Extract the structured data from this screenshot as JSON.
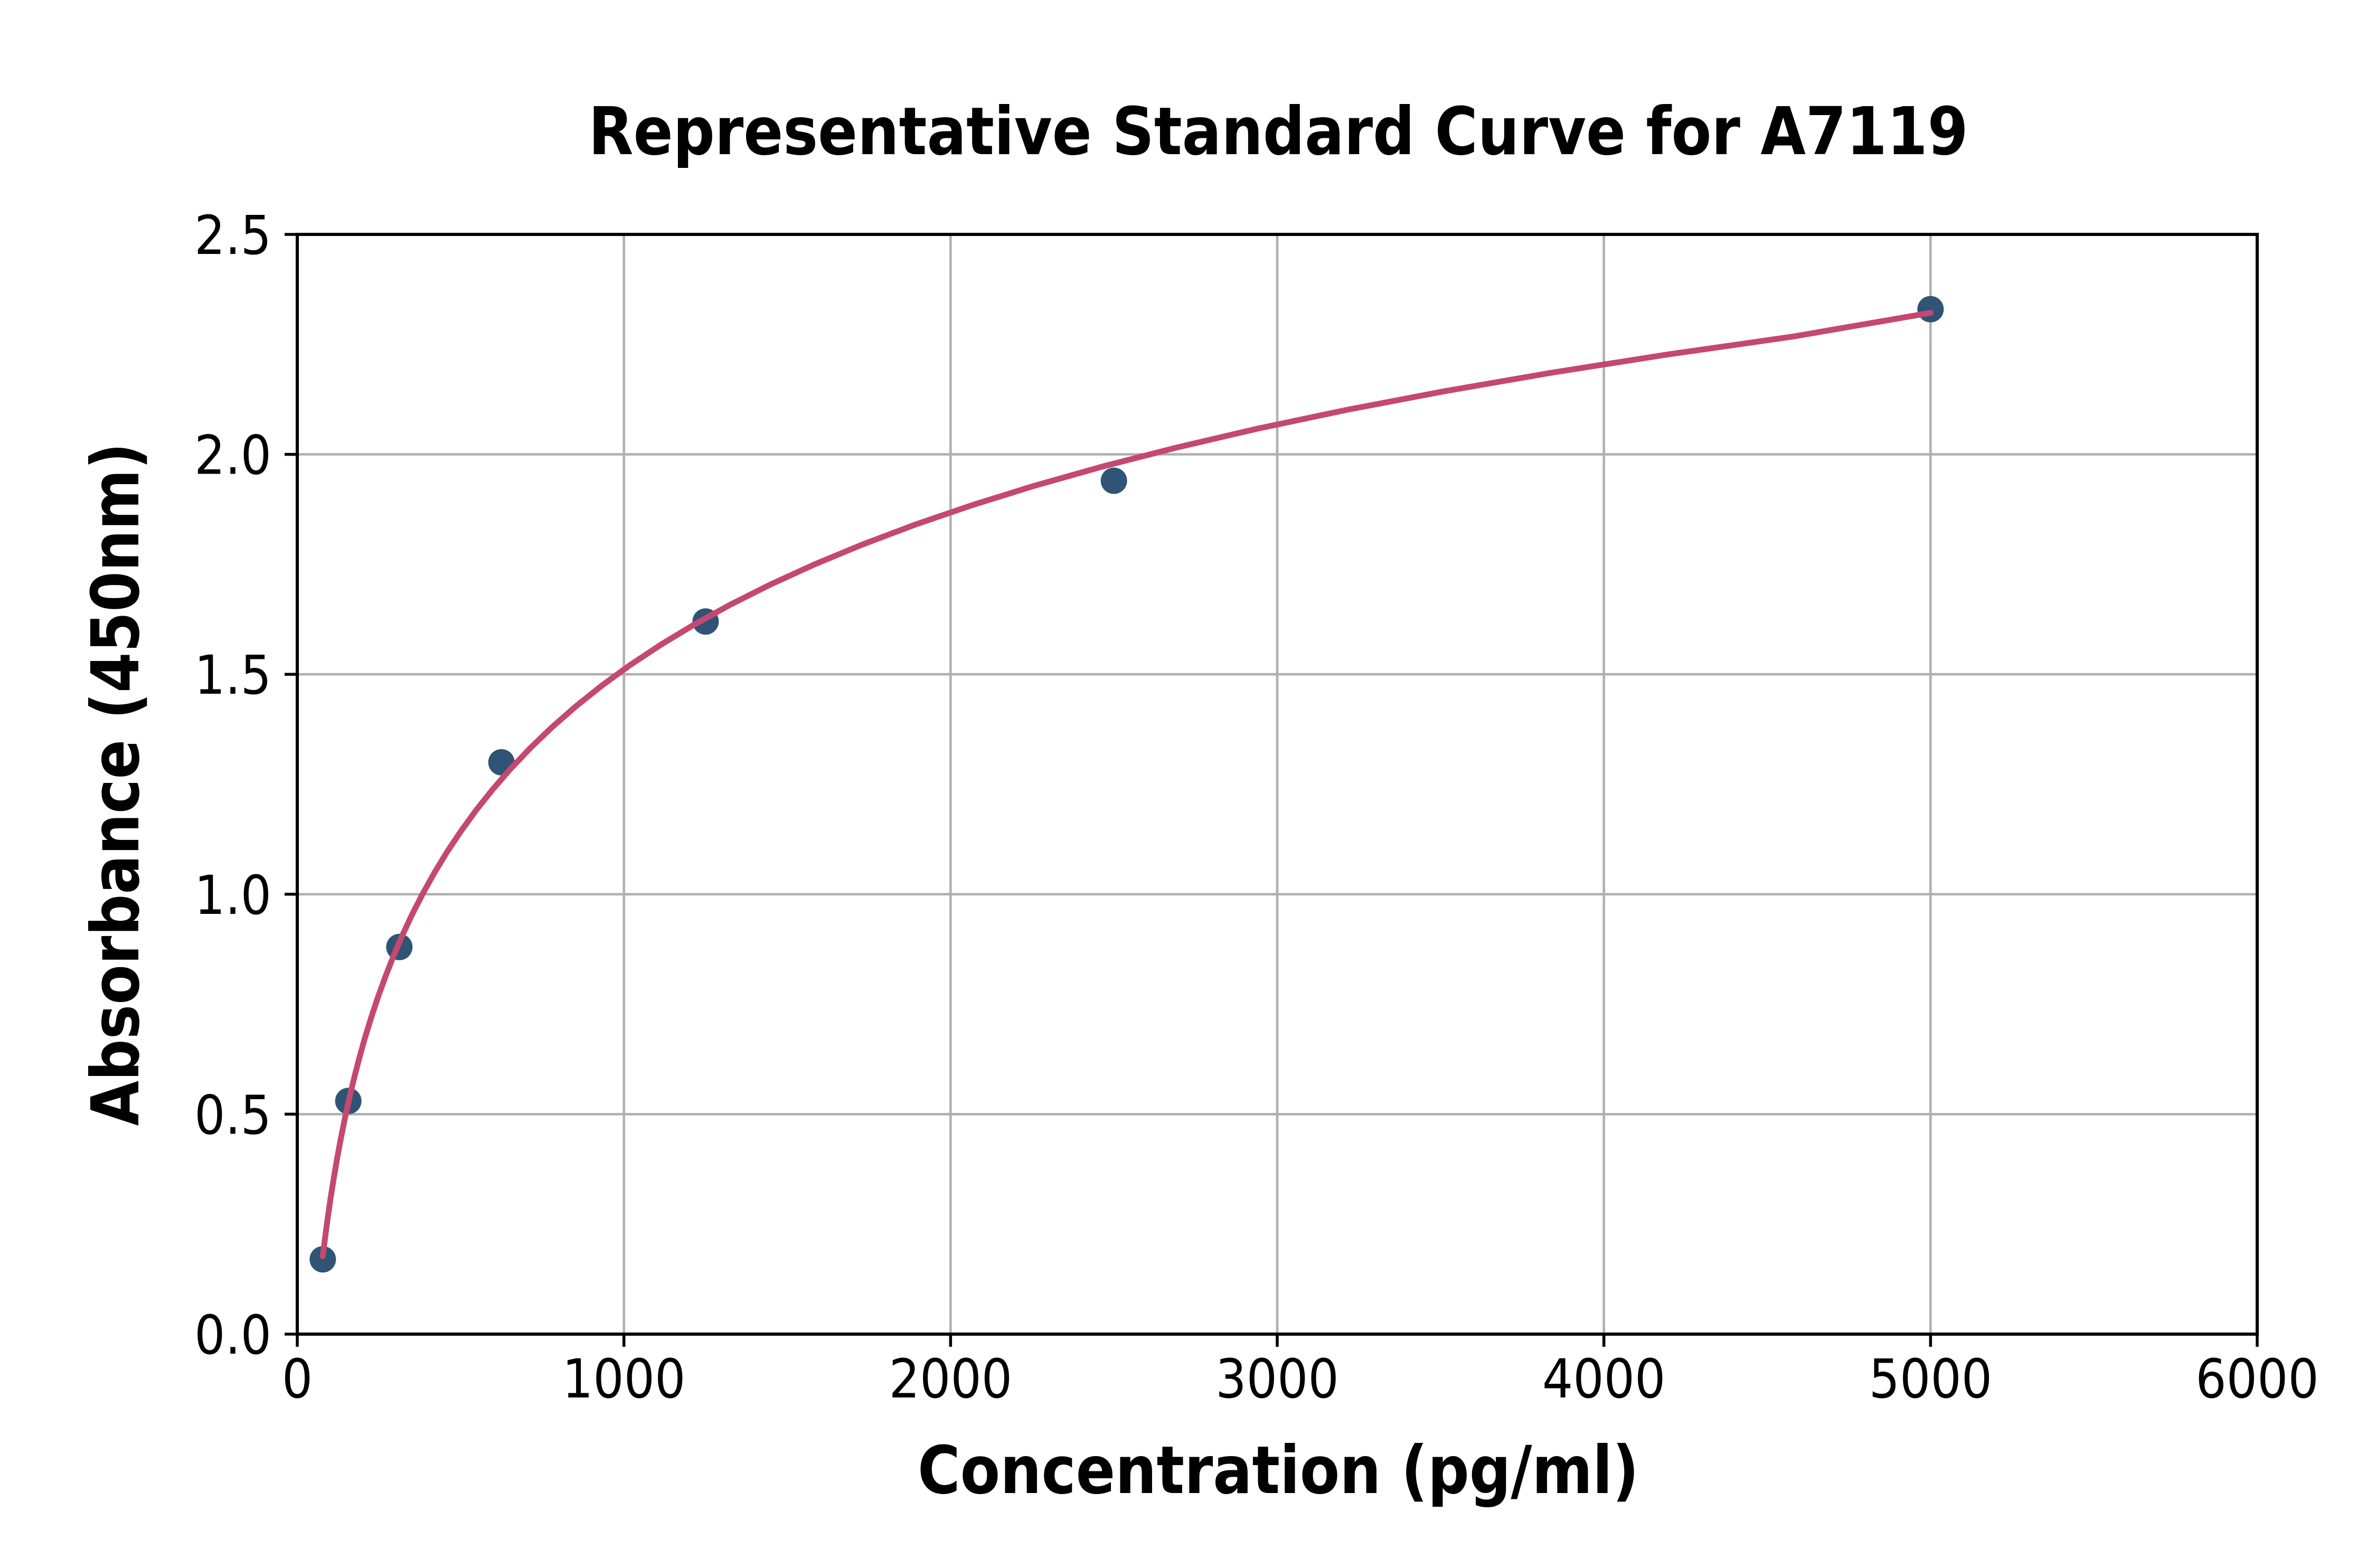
{
  "figure": {
    "background": "#ffffff"
  },
  "chart_data": {
    "type": "scatter",
    "title": "Representative Standard Curve for A7119",
    "xlabel": "Concentration (pg/ml)",
    "ylabel": "Absorbance (450nm)",
    "xlim": [
      0,
      6000
    ],
    "ylim": [
      0.0,
      2.5
    ],
    "xticks": [
      0,
      1000,
      2000,
      3000,
      4000,
      5000,
      6000
    ],
    "yticks": [
      0.0,
      0.5,
      1.0,
      1.5,
      2.0,
      2.5
    ],
    "xtick_labels": [
      "0",
      "1000",
      "2000",
      "3000",
      "4000",
      "5000",
      "6000"
    ],
    "ytick_labels": [
      "0.0",
      "0.5",
      "1.0",
      "1.5",
      "2.0",
      "2.5"
    ],
    "grid": true,
    "legend_position": "none",
    "series": [
      {
        "name": "standard-points",
        "type": "scatter",
        "marker": "circle",
        "x": [
          78.125,
          156.25,
          312.5,
          625,
          1250,
          2500,
          5000
        ],
        "y": [
          0.17,
          0.53,
          0.88,
          1.3,
          1.62,
          1.94,
          2.33
        ]
      },
      {
        "name": "4pl-fit-curve",
        "type": "line",
        "points": [
          [
            78.1,
            0.1769
          ],
          [
            85.4,
            0.2203
          ],
          [
            93.2,
            0.2641
          ],
          [
            101.9,
            0.3082
          ],
          [
            111.3,
            0.3527
          ],
          [
            121.6,
            0.3975
          ],
          [
            132.9,
            0.4427
          ],
          [
            145.1,
            0.4881
          ],
          [
            158.6,
            0.5338
          ],
          [
            173.2,
            0.5797
          ],
          [
            189.3,
            0.6259
          ],
          [
            206.8,
            0.6723
          ],
          [
            225.9,
            0.7189
          ],
          [
            246.8,
            0.7656
          ],
          [
            269.7,
            0.8125
          ],
          [
            294.6,
            0.8596
          ],
          [
            321.9,
            0.9068
          ],
          [
            351.6,
            0.954
          ],
          [
            384.2,
            1.0013
          ],
          [
            419.7,
            1.0487
          ],
          [
            458.5,
            1.0961
          ],
          [
            501.0,
            1.1434
          ],
          [
            547.3,
            1.1908
          ],
          [
            598.0,
            1.2381
          ],
          [
            653.3,
            1.2854
          ],
          [
            713.7,
            1.3325
          ],
          [
            779.7,
            1.3796
          ],
          [
            851.9,
            1.4265
          ],
          [
            930.7,
            1.4733
          ],
          [
            1016.8,
            1.5199
          ],
          [
            1110.9,
            1.5663
          ],
          [
            1213.7,
            1.6125
          ],
          [
            1326.0,
            1.6584
          ],
          [
            1448.6,
            1.7041
          ],
          [
            1582.7,
            1.7496
          ],
          [
            1729.1,
            1.7947
          ],
          [
            1889.1,
            1.8395
          ],
          [
            2063.8,
            1.884
          ],
          [
            2254.8,
            1.9282
          ],
          [
            2463.4,
            1.9719
          ],
          [
            2691.3,
            2.0154
          ],
          [
            2940.3,
            2.0584
          ],
          [
            3212.4,
            2.101
          ],
          [
            3509.6,
            2.1432
          ],
          [
            3834.3,
            2.185
          ],
          [
            4189.0,
            2.2263
          ],
          [
            4576.6,
            2.2675
          ],
          [
            5000.0,
            2.3216
          ]
        ]
      }
    ],
    "colors": {
      "marker": "#2f5475",
      "curve": "#c4486f",
      "grid": "#b0b0b0",
      "axis": "#000000",
      "text": "#000000",
      "background": "#ffffff"
    }
  }
}
